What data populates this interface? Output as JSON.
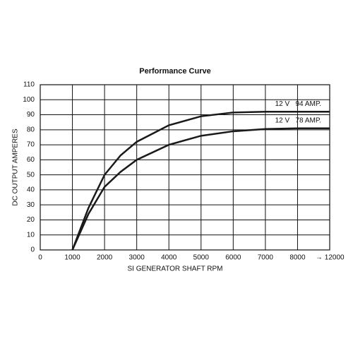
{
  "chart_data": {
    "type": "line",
    "title": "Performance Curve",
    "x_label": "SI GENERATOR SHAFT RPM",
    "y_label": "DC OUTPUT AMPERES",
    "annotation": "→ 12000",
    "x": [
      1000,
      1500,
      2000,
      2500,
      3000,
      4000,
      5000,
      6000,
      7000,
      8000,
      9000
    ],
    "series": [
      {
        "name": "12 V   94 AMP.",
        "color": "#1a1a1a",
        "values": [
          0,
          28,
          50,
          63,
          72,
          83,
          89,
          91.5,
          92,
          92,
          92
        ]
      },
      {
        "name": "12 V   78 AMP.",
        "color": "#1a1a1a",
        "values": [
          0,
          24,
          42,
          52,
          60,
          70,
          76,
          79,
          80.5,
          81,
          81
        ]
      }
    ],
    "xlim": [
      0,
      9000
    ],
    "xticks": [
      0,
      1000,
      2000,
      3000,
      4000,
      5000,
      6000,
      7000,
      8000
    ],
    "ylim": [
      0,
      110
    ],
    "yticks": [
      0,
      10,
      20,
      30,
      40,
      50,
      60,
      70,
      80,
      90,
      100,
      110
    ],
    "grid": true
  }
}
